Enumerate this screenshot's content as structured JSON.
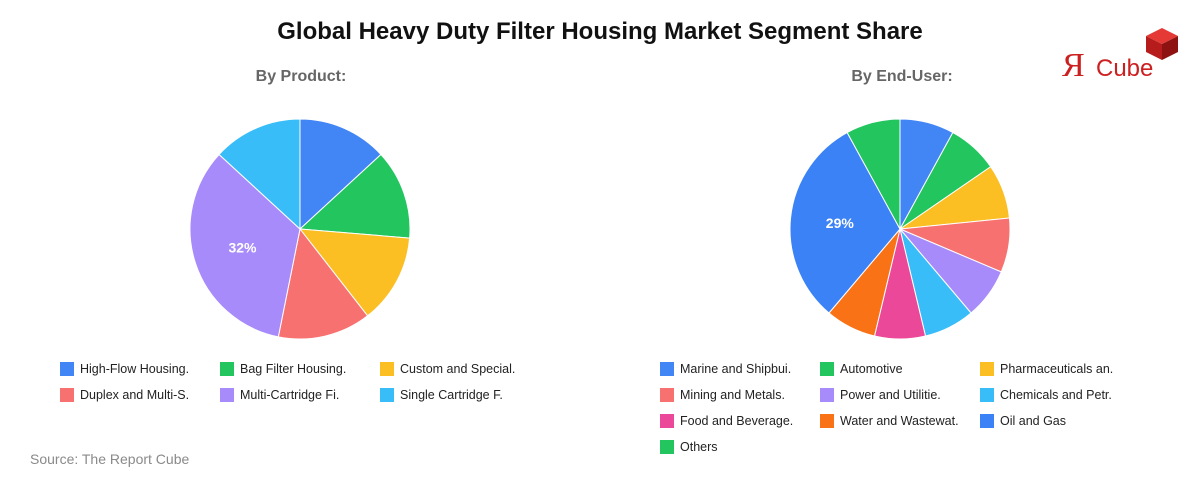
{
  "title": "Global Heavy Duty Filter Housing Market Segment Share",
  "logo": {
    "mark": "Я",
    "text": "Cube"
  },
  "source": "Source: The Report Cube",
  "chart_data": [
    {
      "type": "pie",
      "title": "By Product:",
      "labels": [
        "High-Flow Housing.",
        "Bag Filter Housing.",
        "Custom and Special.",
        "Duplex and Multi-S.",
        "Multi-Cartridge Fi.",
        "Single Cartridge F."
      ],
      "values": [
        12.5,
        12.5,
        12.5,
        13,
        32,
        12.5
      ],
      "colors": [
        "#4285f4",
        "#22c55e",
        "#fbbf24",
        "#f87171",
        "#a78bfa",
        "#38bdf8"
      ],
      "data_labels": [
        "",
        "",
        "",
        "",
        "32%",
        ""
      ]
    },
    {
      "type": "pie",
      "title": "By End-User:",
      "labels": [
        "Marine and Shipbui.",
        "Automotive",
        "Pharmaceuticals an.",
        "Mining and Metals.",
        "Power and Utilitie.",
        "Chemicals and Petr.",
        "Food and Beverage.",
        "Water and Wastewat.",
        "Oil and Gas",
        "Others"
      ],
      "values": [
        7.5,
        7,
        7.5,
        7.5,
        7,
        7,
        7,
        7,
        29,
        7.5
      ],
      "colors": [
        "#4285f4",
        "#22c55e",
        "#fbbf24",
        "#f87171",
        "#a78bfa",
        "#38bdf8",
        "#ec4899",
        "#f97316",
        "#3b82f6",
        "#22c55e"
      ],
      "data_labels": [
        "",
        "",
        "",
        "",
        "",
        "",
        "",
        "",
        "29%",
        ""
      ]
    }
  ]
}
